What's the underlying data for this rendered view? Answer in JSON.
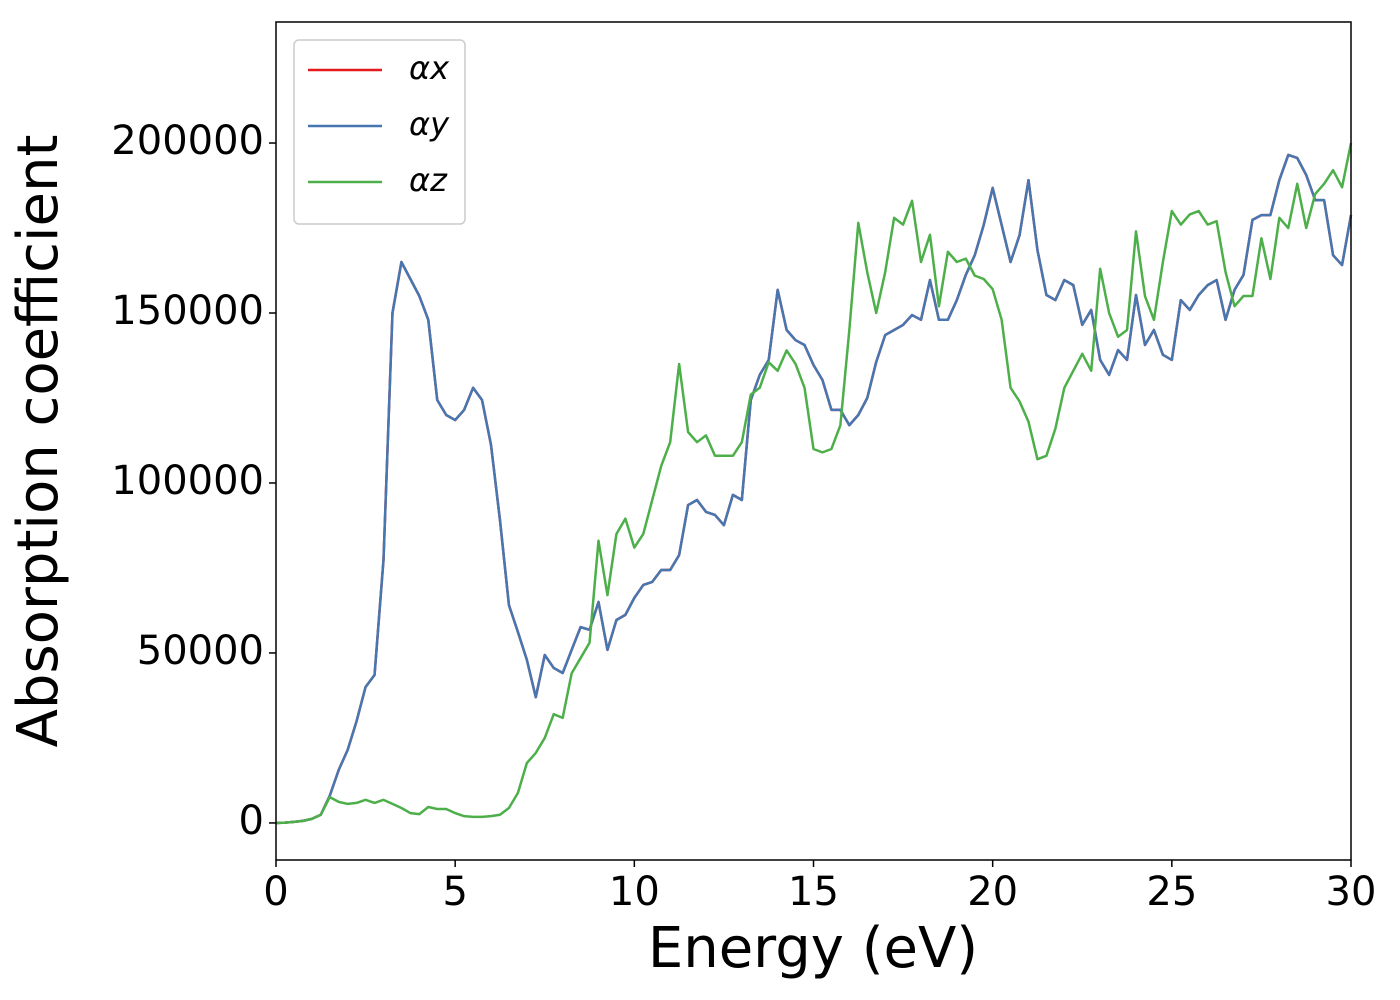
{
  "chart_data": {
    "type": "line",
    "x_label": "Energy (eV)",
    "y_label": "Absorption coefficient",
    "xlim": [
      0,
      30
    ],
    "ylim": [
      -10900,
      235600
    ],
    "xticks": [
      0,
      5,
      10,
      15,
      20,
      25,
      30
    ],
    "yticks": [
      0,
      50000,
      100000,
      150000,
      200000
    ],
    "legend": "upper left",
    "x": [
      0,
      0.25,
      0.5,
      0.75,
      1,
      1.25,
      1.5,
      1.75,
      2,
      2.25,
      2.5,
      2.75,
      3,
      3.25,
      3.5,
      3.75,
      4,
      4.25,
      4.5,
      4.75,
      5,
      5.25,
      5.5,
      5.75,
      6,
      6.25,
      6.5,
      6.75,
      7,
      7.25,
      7.5,
      7.75,
      8,
      8.25,
      8.5,
      8.75,
      9,
      9.25,
      9.5,
      9.75,
      10,
      10.25,
      10.5,
      10.75,
      11,
      11.25,
      11.5,
      11.75,
      12,
      12.25,
      12.5,
      12.75,
      13,
      13.25,
      13.5,
      13.75,
      14,
      14.25,
      14.5,
      14.75,
      15,
      15.25,
      15.5,
      15.75,
      16,
      16.25,
      16.5,
      16.75,
      17,
      17.25,
      17.5,
      17.75,
      18,
      18.25,
      18.5,
      18.75,
      19,
      19.25,
      19.5,
      19.75,
      20,
      20.25,
      20.5,
      20.75,
      21,
      21.25,
      21.5,
      21.75,
      22,
      22.25,
      22.5,
      22.75,
      23,
      23.25,
      23.5,
      23.75,
      24,
      24.25,
      24.5,
      24.75,
      25,
      25.25,
      25.5,
      25.75,
      26,
      26.25,
      26.5,
      26.75,
      27,
      27.25,
      27.5,
      27.75,
      28,
      28.25,
      28.5,
      28.75,
      29,
      29.25,
      29.5,
      29.75,
      30
    ],
    "series": [
      {
        "name": "αx",
        "color": "#e41a1c",
        "values": [
          0,
          100,
          300,
          600,
          1200,
          2400,
          8000,
          15600,
          21500,
          30000,
          40000,
          43500,
          77400,
          150000,
          165000,
          160000,
          155000,
          148000,
          124400,
          120000,
          118500,
          121500,
          128000,
          124400,
          111200,
          89100,
          64100,
          56200,
          48000,
          37000,
          49400,
          45600,
          44100,
          50900,
          57600,
          56800,
          65000,
          50900,
          59700,
          61200,
          66200,
          70000,
          70900,
          74400,
          74400,
          78800,
          93500,
          95000,
          91500,
          90600,
          87600,
          96500,
          95000,
          124400,
          131800,
          136200,
          156800,
          145000,
          142000,
          140600,
          134700,
          130300,
          121500,
          121500,
          117000,
          120000,
          125000,
          135600,
          143500,
          145000,
          146500,
          149400,
          148000,
          159700,
          148000,
          148000,
          153800,
          161200,
          167000,
          175900,
          186800,
          175900,
          165000,
          172900,
          189100,
          168500,
          155300,
          153800,
          159700,
          158200,
          146500,
          150900,
          136200,
          131800,
          139100,
          136200,
          155300,
          140600,
          145000,
          137700,
          136200,
          153800,
          150900,
          155300,
          158200,
          159700,
          148000,
          156800,
          161200,
          177400,
          178800,
          178800,
          189100,
          196500,
          195600,
          190600,
          183200,
          183200,
          167000,
          164100,
          178800
        ]
      },
      {
        "name": "αy",
        "color": "#4677b0",
        "values": [
          0,
          100,
          300,
          600,
          1200,
          2400,
          8000,
          15600,
          21500,
          30000,
          40000,
          43500,
          77400,
          150000,
          165000,
          160000,
          155000,
          148000,
          124400,
          120000,
          118500,
          121500,
          128000,
          124400,
          111200,
          89100,
          64100,
          56200,
          48000,
          37000,
          49400,
          45600,
          44100,
          50900,
          57600,
          56800,
          65000,
          50900,
          59700,
          61200,
          66200,
          70000,
          70900,
          74400,
          74400,
          78800,
          93500,
          95000,
          91500,
          90600,
          87600,
          96500,
          95000,
          124400,
          131800,
          136200,
          156800,
          145000,
          142000,
          140600,
          134700,
          130300,
          121500,
          121500,
          117000,
          120000,
          125000,
          135600,
          143500,
          145000,
          146500,
          149400,
          148000,
          159700,
          148000,
          148000,
          153800,
          161200,
          167000,
          175900,
          186800,
          175900,
          165000,
          172900,
          189100,
          168500,
          155300,
          153800,
          159700,
          158200,
          146500,
          150900,
          136200,
          131800,
          139100,
          136200,
          155300,
          140600,
          145000,
          137700,
          136200,
          153800,
          150900,
          155300,
          158200,
          159700,
          148000,
          156800,
          161200,
          177400,
          178800,
          178800,
          189100,
          196500,
          195600,
          190600,
          183200,
          183200,
          167000,
          164100,
          178800
        ]
      },
      {
        "name": "αz",
        "color": "#4daf4a",
        "values": [
          0,
          100,
          300,
          600,
          1200,
          2400,
          7600,
          6200,
          5600,
          5900,
          6800,
          5900,
          6800,
          5600,
          4400,
          2900,
          2600,
          4700,
          4100,
          4100,
          2900,
          2000,
          1800,
          1800,
          2000,
          2400,
          4400,
          8800,
          17600,
          20600,
          25000,
          32000,
          30900,
          44000,
          48500,
          53000,
          83000,
          67000,
          85000,
          89500,
          81000,
          85000,
          95000,
          105000,
          112000,
          135000,
          115000,
          112000,
          114000,
          108000,
          108000,
          108000,
          112000,
          126000,
          128000,
          135500,
          133000,
          139000,
          135000,
          128000,
          110000,
          109000,
          110000,
          117000,
          145000,
          176500,
          162000,
          150000,
          162000,
          178000,
          176000,
          183000,
          165000,
          173000,
          152000,
          168000,
          165000,
          166000,
          161000,
          160000,
          157000,
          148000,
          128000,
          124000,
          118000,
          107000,
          108000,
          116000,
          128000,
          133000,
          138000,
          133000,
          163000,
          150000,
          143000,
          145000,
          174000,
          155000,
          148000,
          165000,
          180000,
          176000,
          179000,
          180000,
          176000,
          177000,
          162000,
          152000,
          155000,
          155000,
          172000,
          160000,
          178000,
          175000,
          188000,
          175000,
          185000,
          188000,
          192000,
          187000,
          200000
        ]
      }
    ]
  }
}
